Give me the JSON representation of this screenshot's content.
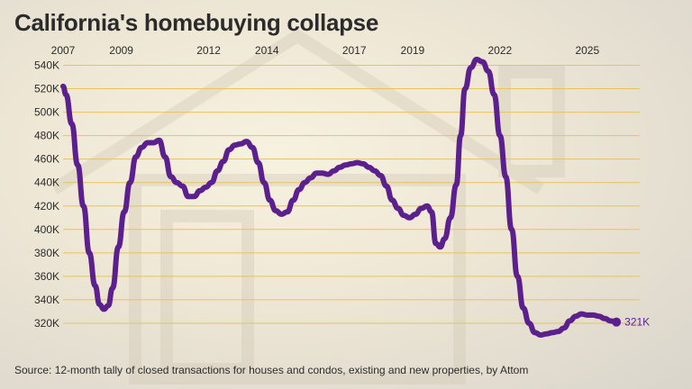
{
  "title": "California's homebuying collapse",
  "source": "Source: 12-month tally of closed transactions for houses and condos, existing and new properties, by Attom",
  "colors": {
    "line": "#5b1f8e",
    "grid": "#e8c25a",
    "text": "#2b2b2b"
  },
  "chart_data": {
    "type": "line",
    "title": "California's homebuying collapse",
    "xlabel": "",
    "ylabel": "",
    "x_ticks": [
      "2007",
      "2009",
      "2012",
      "2014",
      "2017",
      "2019",
      "2022",
      "2025"
    ],
    "y_ticks": [
      "320K",
      "340K",
      "360K",
      "380K",
      "400K",
      "420K",
      "440K",
      "460K",
      "480K",
      "500K",
      "520K",
      "540K"
    ],
    "ylim": [
      310,
      545
    ],
    "xlim": [
      2007.0,
      2026.8
    ],
    "grid": true,
    "end_label": "321K",
    "series": [
      {
        "values": [
          [
            2007.0,
            522
          ],
          [
            2007.1,
            515
          ],
          [
            2007.3,
            490
          ],
          [
            2007.5,
            455
          ],
          [
            2007.7,
            420
          ],
          [
            2007.9,
            380
          ],
          [
            2008.1,
            352
          ],
          [
            2008.25,
            336
          ],
          [
            2008.4,
            332
          ],
          [
            2008.55,
            335
          ],
          [
            2008.7,
            350
          ],
          [
            2008.9,
            385
          ],
          [
            2009.1,
            415
          ],
          [
            2009.3,
            440
          ],
          [
            2009.5,
            462
          ],
          [
            2009.7,
            470
          ],
          [
            2009.9,
            474
          ],
          [
            2010.1,
            474
          ],
          [
            2010.3,
            476
          ],
          [
            2010.5,
            462
          ],
          [
            2010.7,
            445
          ],
          [
            2010.9,
            440
          ],
          [
            2011.1,
            437
          ],
          [
            2011.3,
            428
          ],
          [
            2011.5,
            428
          ],
          [
            2011.7,
            433
          ],
          [
            2011.9,
            436
          ],
          [
            2012.1,
            440
          ],
          [
            2012.3,
            450
          ],
          [
            2012.5,
            458
          ],
          [
            2012.7,
            468
          ],
          [
            2012.9,
            472
          ],
          [
            2013.1,
            473
          ],
          [
            2013.3,
            475
          ],
          [
            2013.5,
            470
          ],
          [
            2013.7,
            457
          ],
          [
            2013.9,
            440
          ],
          [
            2014.1,
            425
          ],
          [
            2014.3,
            416
          ],
          [
            2014.5,
            413
          ],
          [
            2014.7,
            415
          ],
          [
            2014.9,
            425
          ],
          [
            2015.1,
            434
          ],
          [
            2015.3,
            440
          ],
          [
            2015.5,
            444
          ],
          [
            2015.7,
            448
          ],
          [
            2015.9,
            448
          ],
          [
            2016.1,
            447
          ],
          [
            2016.3,
            450
          ],
          [
            2016.5,
            453
          ],
          [
            2016.7,
            455
          ],
          [
            2016.9,
            456
          ],
          [
            2017.1,
            457
          ],
          [
            2017.3,
            456
          ],
          [
            2017.5,
            453
          ],
          [
            2017.7,
            450
          ],
          [
            2017.9,
            446
          ],
          [
            2018.1,
            437
          ],
          [
            2018.3,
            425
          ],
          [
            2018.5,
            418
          ],
          [
            2018.7,
            412
          ],
          [
            2018.9,
            410
          ],
          [
            2019.1,
            413
          ],
          [
            2019.3,
            418
          ],
          [
            2019.5,
            420
          ],
          [
            2019.65,
            415
          ],
          [
            2019.8,
            388
          ],
          [
            2019.95,
            385
          ],
          [
            2020.1,
            392
          ],
          [
            2020.3,
            410
          ],
          [
            2020.5,
            438
          ],
          [
            2020.65,
            480
          ],
          [
            2020.8,
            520
          ],
          [
            2021.0,
            538
          ],
          [
            2021.2,
            545
          ],
          [
            2021.4,
            543
          ],
          [
            2021.6,
            535
          ],
          [
            2021.8,
            515
          ],
          [
            2022.0,
            480
          ],
          [
            2022.2,
            445
          ],
          [
            2022.4,
            400
          ],
          [
            2022.6,
            360
          ],
          [
            2022.8,
            333
          ],
          [
            2023.0,
            320
          ],
          [
            2023.2,
            312
          ],
          [
            2023.4,
            310
          ],
          [
            2023.6,
            311
          ],
          [
            2023.8,
            312
          ],
          [
            2024.0,
            313
          ],
          [
            2024.2,
            316
          ],
          [
            2024.4,
            322
          ],
          [
            2024.6,
            326
          ],
          [
            2024.8,
            328
          ],
          [
            2025.0,
            327
          ],
          [
            2025.2,
            327
          ],
          [
            2025.4,
            326
          ],
          [
            2025.6,
            324
          ],
          [
            2025.8,
            322
          ],
          [
            2026.0,
            321
          ]
        ]
      }
    ]
  }
}
